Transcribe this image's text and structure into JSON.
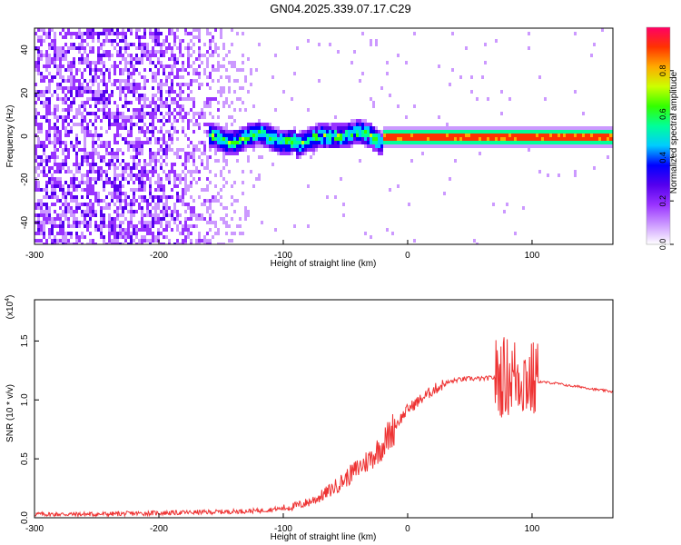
{
  "title": "GN04.2025.339.07.17.C29",
  "chart_data": [
    {
      "type": "heatmap",
      "xlabel": "Height of straight line (km)",
      "ylabel": "Frequency (Hz)",
      "xlim": [
        -300,
        165
      ],
      "ylim": [
        -50,
        50
      ],
      "xticks": [
        -300,
        -200,
        -100,
        0,
        100
      ],
      "yticks": [
        -40,
        -20,
        0,
        20,
        40
      ],
      "colorbar": {
        "label": "Normalized spectral amplitude",
        "range": [
          0,
          1
        ],
        "ticks": [
          "0.0",
          "0.2",
          "0.4",
          "0.6",
          "0.8"
        ],
        "colormap": [
          "#ffffff",
          "#cc99ff",
          "#9933ff",
          "#5500ee",
          "#0000ff",
          "#00ccff",
          "#00ff99",
          "#33ff00",
          "#ccff00",
          "#ffaa00",
          "#ff3300",
          "#ff0066"
        ]
      },
      "features": {
        "noise_region_x": [
          -300,
          -120
        ],
        "carrier_frequency": 0,
        "carrier_start_x": -20,
        "wander_region_x": [
          -160,
          -20
        ]
      }
    },
    {
      "type": "line",
      "xlabel": "Height of straight line (km)",
      "ylabel": "SNR (10 * v/v)",
      "yscale_label": "(x10",
      "yscale_exp": "4",
      "yscale_close": ")",
      "xlim": [
        -300,
        165
      ],
      "ylim": [
        0,
        1.85
      ],
      "xticks": [
        -300,
        -200,
        -100,
        0,
        100
      ],
      "yticks": [
        "0.0",
        "0.5",
        "1.0",
        "1.5"
      ],
      "series": [
        {
          "color": "#ee3333",
          "x": [
            -300,
            -250,
            -200,
            -150,
            -120,
            -100,
            -90,
            -80,
            -70,
            -60,
            -50,
            -40,
            -30,
            -20,
            -10,
            0,
            10,
            20,
            30,
            40,
            50,
            60,
            70,
            80,
            90,
            100,
            110,
            120,
            130,
            140,
            150,
            165
          ],
          "y": [
            0.03,
            0.03,
            0.04,
            0.05,
            0.06,
            0.08,
            0.1,
            0.13,
            0.18,
            0.25,
            0.33,
            0.42,
            0.5,
            0.62,
            0.78,
            0.92,
            1.0,
            1.08,
            1.14,
            1.17,
            1.18,
            1.18,
            1.19,
            1.2,
            1.21,
            1.16,
            1.15,
            1.14,
            1.12,
            1.11,
            1.09,
            1.07
          ]
        }
      ]
    }
  ]
}
